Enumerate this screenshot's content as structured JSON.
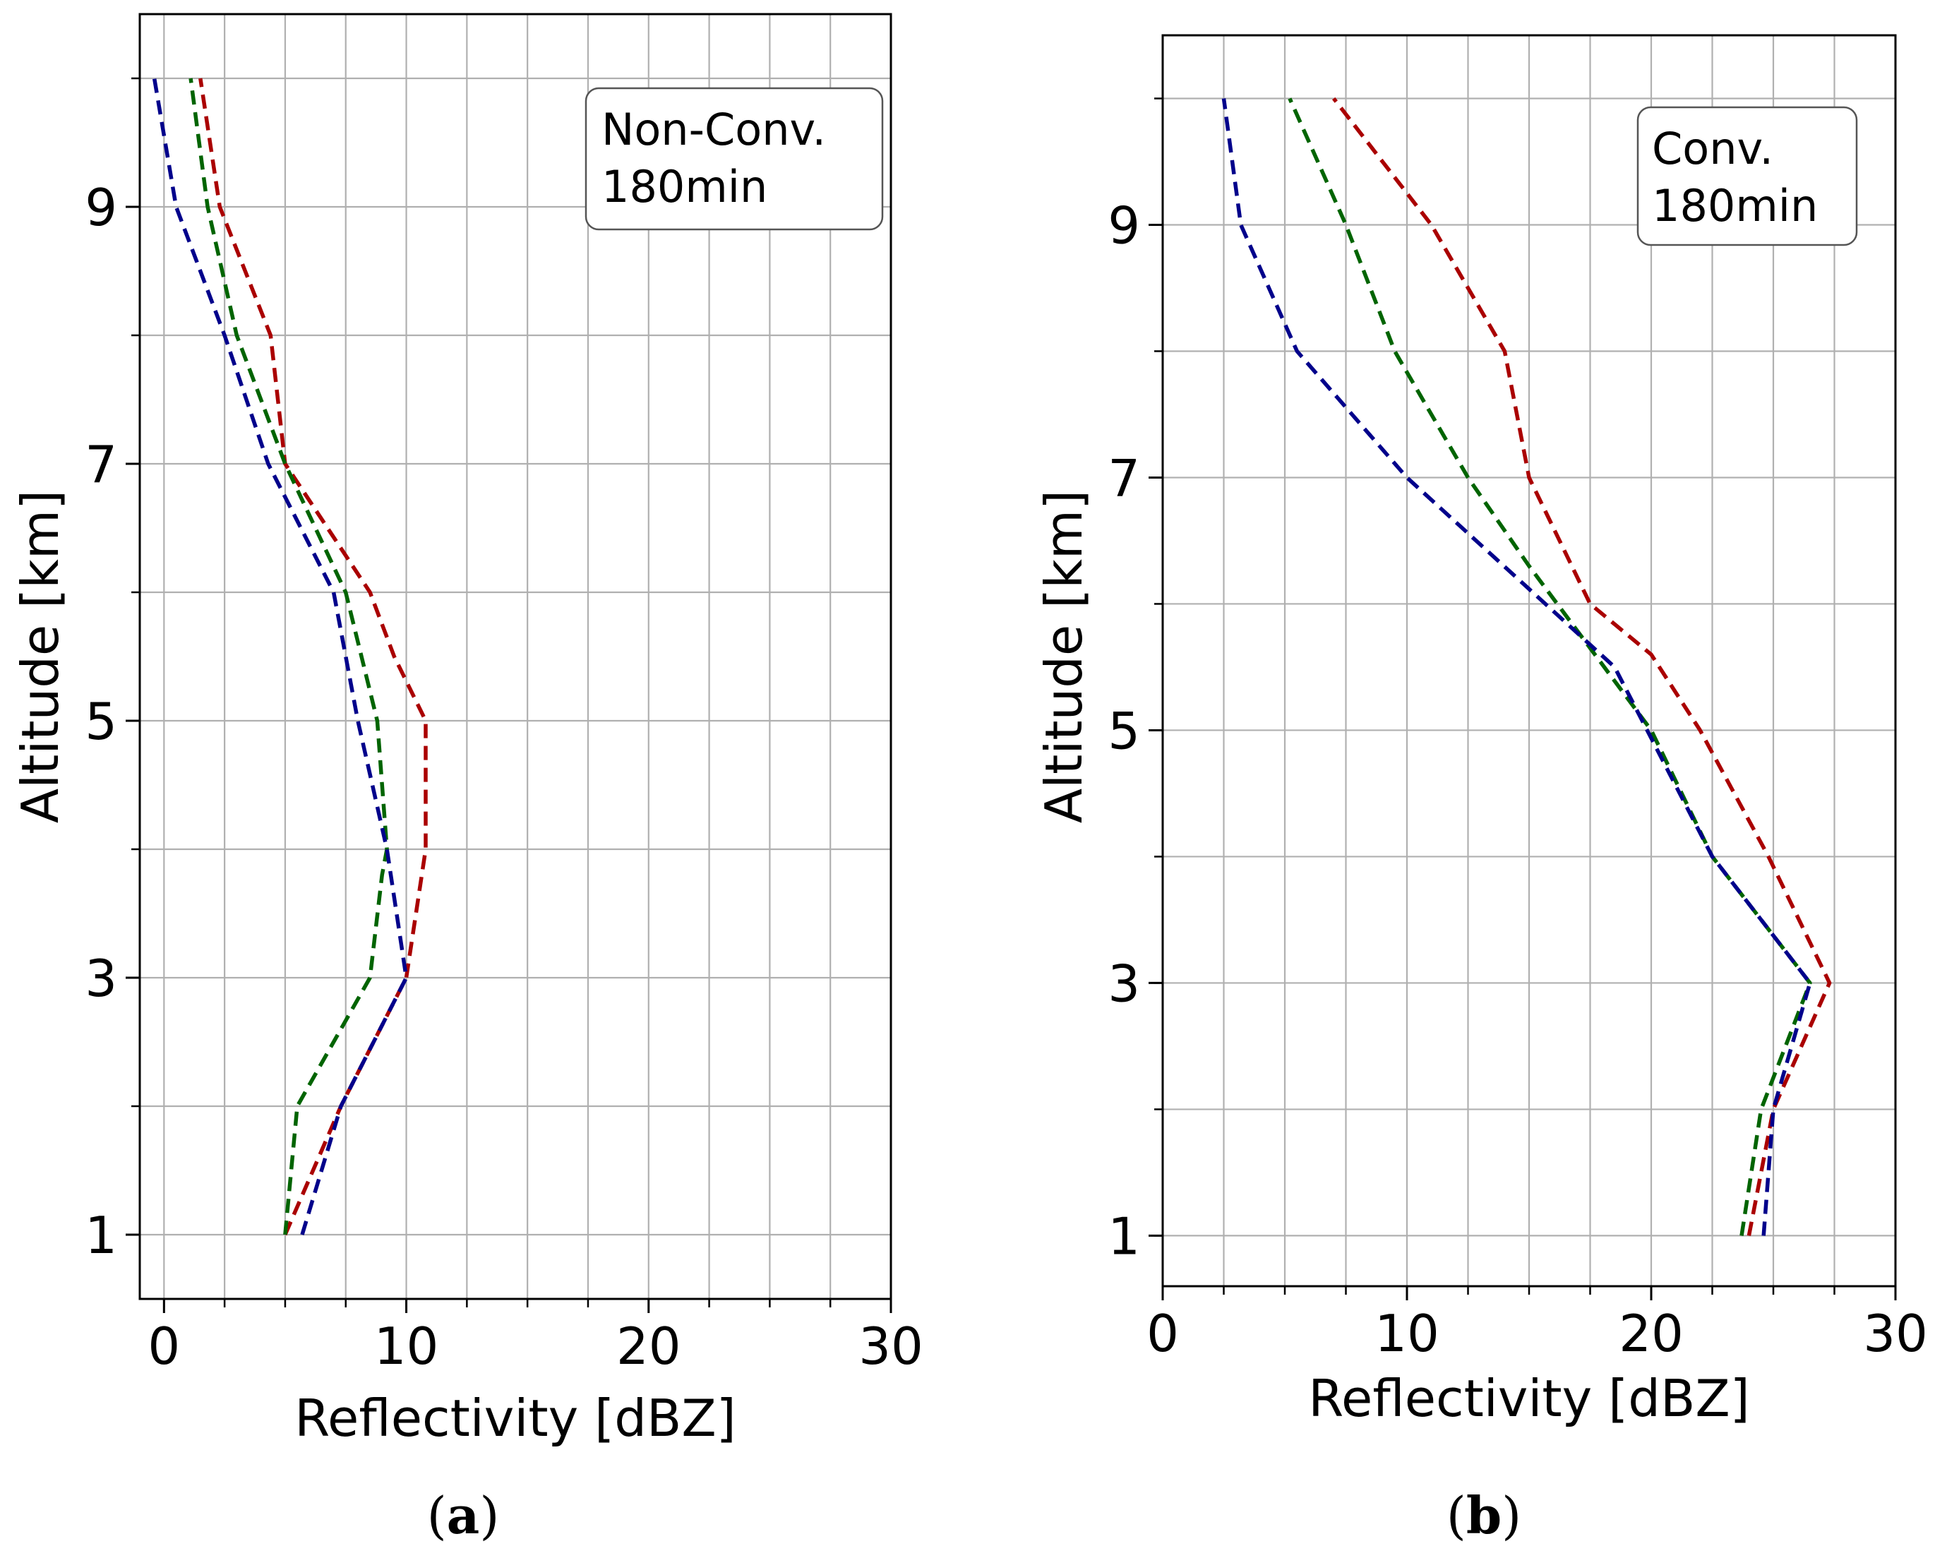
{
  "chart_data": [
    {
      "type": "line",
      "panel_label_prefix": "(",
      "panel_letter": "a",
      "panel_label_suffix": ")",
      "annotation": [
        "Non-Conv.",
        "180min"
      ],
      "xlabel": "Reflectivity [dBZ]",
      "ylabel": "Altitude [km]",
      "xlim": [
        -1,
        30
      ],
      "ylim": [
        0.5,
        10.5
      ],
      "xticks": [
        0,
        10,
        20,
        30
      ],
      "xgrid": [
        0,
        2.5,
        5,
        7.5,
        10,
        12.5,
        15,
        17.5,
        20,
        22.5,
        25,
        27.5,
        30
      ],
      "yticks": [
        1,
        3,
        5,
        7,
        9
      ],
      "ygrid": [
        1,
        2,
        3,
        4,
        5,
        6,
        7,
        8,
        9,
        10
      ],
      "grid": true,
      "series": [
        {
          "name": "red",
          "color": "#aa0000",
          "dash": "dashed",
          "x": [
            5,
            7.3,
            10,
            10.8,
            10.8,
            9.5,
            8.5,
            5,
            4.4,
            2.3,
            1.5
          ],
          "y": [
            1,
            2,
            3,
            4,
            5,
            5.5,
            6,
            7,
            8,
            9,
            10
          ]
        },
        {
          "name": "green",
          "color": "#006400",
          "dash": "dashed",
          "x": [
            5,
            5.5,
            8.5,
            9,
            9.2,
            8.8,
            7.5,
            5,
            3,
            1.8,
            1.1
          ],
          "y": [
            1,
            2,
            3,
            3.8,
            4,
            5,
            6,
            7,
            8,
            9,
            10
          ]
        },
        {
          "name": "blue",
          "color": "#00008b",
          "dash": "dashed",
          "x": [
            5.7,
            7.3,
            10,
            9.2,
            8,
            7,
            4.3,
            2.5,
            0.5,
            -0.4
          ],
          "y": [
            1,
            2,
            3,
            4,
            5,
            6,
            7,
            8,
            9,
            10
          ]
        }
      ]
    },
    {
      "type": "line",
      "panel_label_prefix": "(",
      "panel_letter": "b",
      "panel_label_suffix": ")",
      "annotation": [
        "Conv.",
        "180min"
      ],
      "xlabel": "Reflectivity [dBZ]",
      "ylabel": "Altitude [km]",
      "xlim": [
        0,
        30
      ],
      "ylim": [
        0.6,
        10.5
      ],
      "xticks": [
        0,
        10,
        20,
        30
      ],
      "xgrid": [
        0,
        2.5,
        5,
        7.5,
        10,
        12.5,
        15,
        17.5,
        20,
        22.5,
        25,
        27.5,
        30
      ],
      "yticks": [
        1,
        3,
        5,
        7,
        9
      ],
      "ygrid": [
        1,
        2,
        3,
        4,
        5,
        6,
        7,
        8,
        9,
        10
      ],
      "grid": true,
      "series": [
        {
          "name": "red",
          "color": "#aa0000",
          "dash": "dashed",
          "x": [
            24,
            25,
            27.3,
            24.8,
            22,
            20,
            17.5,
            15,
            14,
            11,
            7
          ],
          "y": [
            1,
            2,
            3,
            4,
            5,
            5.6,
            6,
            7,
            8,
            9,
            10
          ]
        },
        {
          "name": "green",
          "color": "#006400",
          "dash": "dashed",
          "x": [
            23.7,
            24.5,
            26.5,
            22.5,
            20,
            15,
            12.5,
            9.5,
            7.5,
            5.2
          ],
          "y": [
            1,
            2,
            3,
            4,
            5,
            6.3,
            7,
            8,
            9,
            10
          ]
        },
        {
          "name": "blue",
          "color": "#00008b",
          "dash": "dashed",
          "x": [
            24.6,
            25,
            26.5,
            22.5,
            18.5,
            10,
            5.5,
            3.2,
            2.5
          ],
          "y": [
            1,
            2,
            3,
            4,
            5.5,
            7,
            8,
            9,
            10
          ]
        }
      ]
    }
  ]
}
